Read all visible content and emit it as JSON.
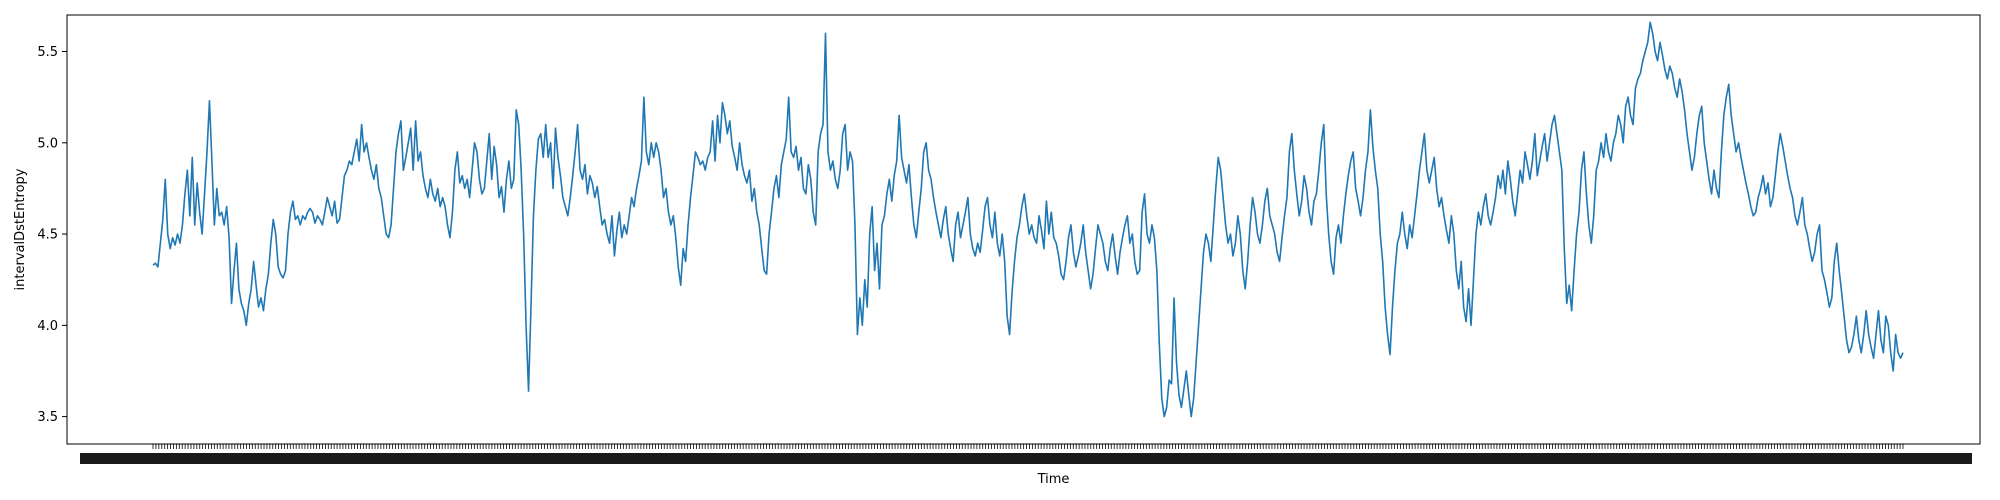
{
  "chart_data": {
    "type": "line",
    "xlabel": "Time",
    "ylabel": "intervalDstEntropy",
    "ylim": [
      3.35,
      5.7
    ],
    "y_ticks": [
      "3.5",
      "4.0",
      "4.5",
      "5.0",
      "5.5"
    ],
    "x_tick_count": 600,
    "grid": false,
    "legend": "none",
    "colors": {
      "line": "#1f77b4",
      "axes": "#000000",
      "background": "#ffffff"
    },
    "series": [
      {
        "values": [
          4.33,
          4.34,
          4.32,
          4.45,
          4.58,
          4.8,
          4.5,
          4.42,
          4.48,
          4.44,
          4.5,
          4.45,
          4.55,
          4.72,
          4.85,
          4.6,
          4.92,
          4.55,
          4.78,
          4.62,
          4.5,
          4.72,
          4.95,
          5.23,
          4.9,
          4.55,
          4.75,
          4.6,
          4.62,
          4.55,
          4.65,
          4.48,
          4.12,
          4.3,
          4.45,
          4.2,
          4.12,
          4.08,
          4.0,
          4.12,
          4.2,
          4.35,
          4.22,
          4.1,
          4.15,
          4.08,
          4.2,
          4.28,
          4.45,
          4.58,
          4.5,
          4.32,
          4.28,
          4.26,
          4.3,
          4.5,
          4.62,
          4.68,
          4.58,
          4.6,
          4.55,
          4.6,
          4.58,
          4.62,
          4.64,
          4.62,
          4.56,
          4.6,
          4.58,
          4.55,
          4.62,
          4.7,
          4.65,
          4.6,
          4.68,
          4.56,
          4.58,
          4.7,
          4.82,
          4.85,
          4.9,
          4.88,
          4.95,
          5.02,
          4.9,
          5.1,
          4.95,
          5.0,
          4.92,
          4.85,
          4.8,
          4.88,
          4.75,
          4.7,
          4.6,
          4.5,
          4.48,
          4.55,
          4.75,
          4.95,
          5.05,
          5.12,
          4.85,
          4.92,
          5.0,
          5.08,
          4.85,
          5.12,
          4.9,
          4.95,
          4.82,
          4.75,
          4.7,
          4.8,
          4.72,
          4.68,
          4.75,
          4.65,
          4.7,
          4.65,
          4.55,
          4.48,
          4.62,
          4.85,
          4.95,
          4.78,
          4.82,
          4.75,
          4.8,
          4.7,
          4.85,
          5.0,
          4.95,
          4.8,
          4.72,
          4.75,
          4.9,
          5.05,
          4.8,
          4.98,
          4.88,
          4.7,
          4.76,
          4.62,
          4.8,
          4.9,
          4.75,
          4.8,
          5.18,
          5.1,
          4.85,
          4.5,
          4.0,
          3.64,
          4.1,
          4.6,
          4.85,
          5.02,
          5.05,
          4.92,
          5.1,
          4.92,
          5.0,
          4.75,
          5.08,
          4.92,
          4.82,
          4.7,
          4.65,
          4.6,
          4.7,
          4.82,
          4.95,
          5.1,
          4.85,
          4.8,
          4.88,
          4.72,
          4.82,
          4.78,
          4.7,
          4.76,
          4.65,
          4.55,
          4.58,
          4.5,
          4.45,
          4.6,
          4.38,
          4.52,
          4.62,
          4.48,
          4.55,
          4.5,
          4.6,
          4.7,
          4.65,
          4.75,
          4.82,
          4.9,
          5.25,
          4.95,
          4.88,
          5.0,
          4.92,
          5.0,
          4.95,
          4.85,
          4.7,
          4.75,
          4.62,
          4.55,
          4.6,
          4.48,
          4.32,
          4.22,
          4.42,
          4.35,
          4.55,
          4.7,
          4.82,
          4.95,
          4.92,
          4.88,
          4.9,
          4.85,
          4.92,
          4.95,
          5.12,
          4.9,
          5.15,
          5.0,
          5.22,
          5.15,
          5.05,
          5.12,
          4.98,
          4.92,
          4.85,
          5.0,
          4.88,
          4.82,
          4.78,
          4.85,
          4.68,
          4.75,
          4.62,
          4.55,
          4.42,
          4.3,
          4.28,
          4.5,
          4.62,
          4.75,
          4.82,
          4.7,
          4.88,
          4.95,
          5.02,
          5.25,
          4.95,
          4.92,
          4.98,
          4.85,
          4.92,
          4.75,
          4.72,
          4.88,
          4.8,
          4.62,
          4.55,
          4.95,
          5.05,
          5.1,
          5.6,
          4.95,
          4.85,
          4.9,
          4.8,
          4.75,
          4.85,
          5.05,
          5.1,
          4.85,
          4.95,
          4.9,
          4.55,
          3.95,
          4.15,
          4.0,
          4.25,
          4.1,
          4.5,
          4.65,
          4.3,
          4.45,
          4.2,
          4.55,
          4.6,
          4.72,
          4.8,
          4.68,
          4.82,
          4.9,
          5.15,
          4.92,
          4.85,
          4.78,
          4.88,
          4.7,
          4.55,
          4.48,
          4.62,
          4.75,
          4.95,
          5.0,
          4.85,
          4.8,
          4.7,
          4.62,
          4.55,
          4.48,
          4.58,
          4.65,
          4.5,
          4.42,
          4.35,
          4.55,
          4.62,
          4.48,
          4.55,
          4.62,
          4.7,
          4.5,
          4.42,
          4.38,
          4.45,
          4.4,
          4.52,
          4.65,
          4.7,
          4.55,
          4.48,
          4.62,
          4.45,
          4.38,
          4.5,
          4.35,
          4.05,
          3.95,
          4.18,
          4.35,
          4.48,
          4.55,
          4.65,
          4.72,
          4.6,
          4.5,
          4.55,
          4.48,
          4.45,
          4.6,
          4.52,
          4.42,
          4.68,
          4.5,
          4.62,
          4.48,
          4.45,
          4.38,
          4.28,
          4.25,
          4.35,
          4.48,
          4.55,
          4.4,
          4.32,
          4.38,
          4.45,
          4.55,
          4.4,
          4.3,
          4.2,
          4.28,
          4.42,
          4.55,
          4.5,
          4.45,
          4.35,
          4.3,
          4.42,
          4.5,
          4.38,
          4.28,
          4.4,
          4.48,
          4.55,
          4.6,
          4.45,
          4.5,
          4.35,
          4.28,
          4.3,
          4.62,
          4.72,
          4.5,
          4.45,
          4.55,
          4.48,
          4.3,
          3.9,
          3.6,
          3.5,
          3.55,
          3.7,
          3.68,
          4.15,
          3.8,
          3.62,
          3.55,
          3.65,
          3.75,
          3.62,
          3.5,
          3.6,
          3.8,
          4.0,
          4.2,
          4.4,
          4.5,
          4.45,
          4.35,
          4.55,
          4.75,
          4.92,
          4.85,
          4.7,
          4.55,
          4.45,
          4.5,
          4.38,
          4.45,
          4.6,
          4.5,
          4.3,
          4.2,
          4.35,
          4.55,
          4.7,
          4.62,
          4.5,
          4.45,
          4.55,
          4.68,
          4.75,
          4.6,
          4.55,
          4.5,
          4.4,
          4.35,
          4.48,
          4.6,
          4.7,
          4.95,
          5.05,
          4.85,
          4.72,
          4.6,
          4.68,
          4.82,
          4.75,
          4.62,
          4.55,
          4.68,
          4.72,
          4.85,
          5.0,
          5.1,
          4.72,
          4.5,
          4.35,
          4.28,
          4.48,
          4.55,
          4.45,
          4.6,
          4.72,
          4.82,
          4.9,
          4.95,
          4.75,
          4.68,
          4.6,
          4.7,
          4.85,
          4.95,
          5.18,
          4.98,
          4.85,
          4.75,
          4.5,
          4.35,
          4.1,
          3.95,
          3.84,
          4.1,
          4.3,
          4.45,
          4.5,
          4.62,
          4.5,
          4.42,
          4.55,
          4.48,
          4.6,
          4.72,
          4.85,
          4.95,
          5.05,
          4.85,
          4.78,
          4.85,
          4.92,
          4.75,
          4.65,
          4.7,
          4.6,
          4.52,
          4.45,
          4.6,
          4.5,
          4.3,
          4.2,
          4.35,
          4.1,
          4.02,
          4.2,
          4.0,
          4.25,
          4.5,
          4.62,
          4.55,
          4.65,
          4.72,
          4.6,
          4.55,
          4.62,
          4.7,
          4.82,
          4.75,
          4.85,
          4.72,
          4.9,
          4.8,
          4.68,
          4.6,
          4.72,
          4.85,
          4.78,
          4.95,
          4.88,
          4.8,
          4.9,
          5.05,
          4.82,
          4.9,
          4.98,
          5.05,
          4.9,
          5.0,
          5.1,
          5.15,
          5.05,
          4.95,
          4.85,
          4.42,
          4.12,
          4.22,
          4.08,
          4.3,
          4.5,
          4.62,
          4.85,
          4.95,
          4.72,
          4.55,
          4.45,
          4.6,
          4.85,
          4.9,
          5.0,
          4.92,
          5.05,
          4.95,
          4.9,
          5.0,
          5.05,
          5.15,
          5.1,
          5.0,
          5.2,
          5.25,
          5.15,
          5.1,
          5.3,
          5.35,
          5.38,
          5.45,
          5.5,
          5.55,
          5.66,
          5.6,
          5.5,
          5.45,
          5.55,
          5.48,
          5.4,
          5.35,
          5.42,
          5.38,
          5.3,
          5.25,
          5.35,
          5.28,
          5.18,
          5.05,
          4.95,
          4.85,
          4.92,
          5.05,
          5.15,
          5.2,
          5.0,
          4.9,
          4.8,
          4.72,
          4.85,
          4.75,
          4.7,
          4.95,
          5.15,
          5.25,
          5.32,
          5.15,
          5.05,
          4.95,
          5.0,
          4.92,
          4.85,
          4.78,
          4.72,
          4.65,
          4.6,
          4.62,
          4.7,
          4.75,
          4.82,
          4.72,
          4.78,
          4.65,
          4.7,
          4.82,
          4.95,
          5.05,
          4.98,
          4.9,
          4.82,
          4.75,
          4.7,
          4.6,
          4.55,
          4.62,
          4.7,
          4.55,
          4.5,
          4.42,
          4.35,
          4.4,
          4.5,
          4.55,
          4.3,
          4.25,
          4.18,
          4.1,
          4.15,
          4.35,
          4.45,
          4.3,
          4.18,
          4.05,
          3.92,
          3.85,
          3.88,
          3.95,
          4.05,
          3.92,
          3.85,
          3.95,
          4.08,
          3.95,
          3.88,
          3.82,
          3.95,
          4.08,
          3.92,
          3.85,
          4.05,
          4.0,
          3.85,
          3.75,
          3.95,
          3.85,
          3.82,
          3.85
        ]
      }
    ]
  }
}
